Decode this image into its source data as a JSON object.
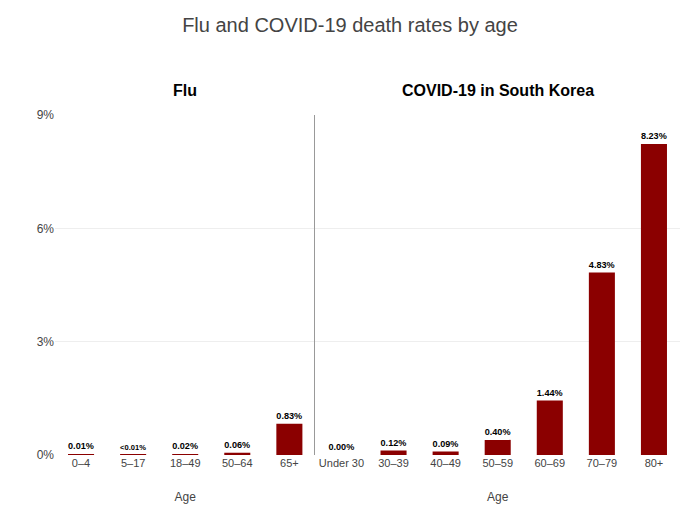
{
  "title": "Flu and COVID-19 death rates by age",
  "chart_data": [
    {
      "type": "bar",
      "title": "Flu",
      "categories": [
        "0–4",
        "5–17",
        "18–49",
        "50–64",
        "65+"
      ],
      "values": [
        0.01,
        0.009,
        0.02,
        0.06,
        0.83
      ],
      "value_labels": [
        "0.01%",
        "<0.01%",
        "0.02%",
        "0.06%",
        "0.83%"
      ],
      "data_labels": true,
      "color": "#8B0000",
      "xlabel": "Age",
      "ylim": [
        0,
        9
      ],
      "yticks": [
        {
          "value": 0,
          "label": "0%"
        },
        {
          "value": 3,
          "label": "3%"
        },
        {
          "value": 6,
          "label": "6%"
        },
        {
          "value": 9,
          "label": "9%"
        }
      ],
      "grid": true
    },
    {
      "type": "bar",
      "title": "COVID-19 in South Korea",
      "categories": [
        "Under 30",
        "30–39",
        "40–49",
        "50–59",
        "60–69",
        "70–79",
        "80+"
      ],
      "values": [
        0.0,
        0.12,
        0.09,
        0.4,
        1.44,
        4.83,
        8.23
      ],
      "value_labels": [
        "0.00%",
        "0.12%",
        "0.09%",
        "0.40%",
        "1.44%",
        "4.83%",
        "8.23%"
      ],
      "data_labels": true,
      "color": "#8B0000",
      "xlabel": "Age",
      "ylim": [
        0,
        9
      ],
      "yticks": [
        0,
        3,
        6,
        9
      ],
      "tick_labels": "x",
      "grid": true
    }
  ]
}
